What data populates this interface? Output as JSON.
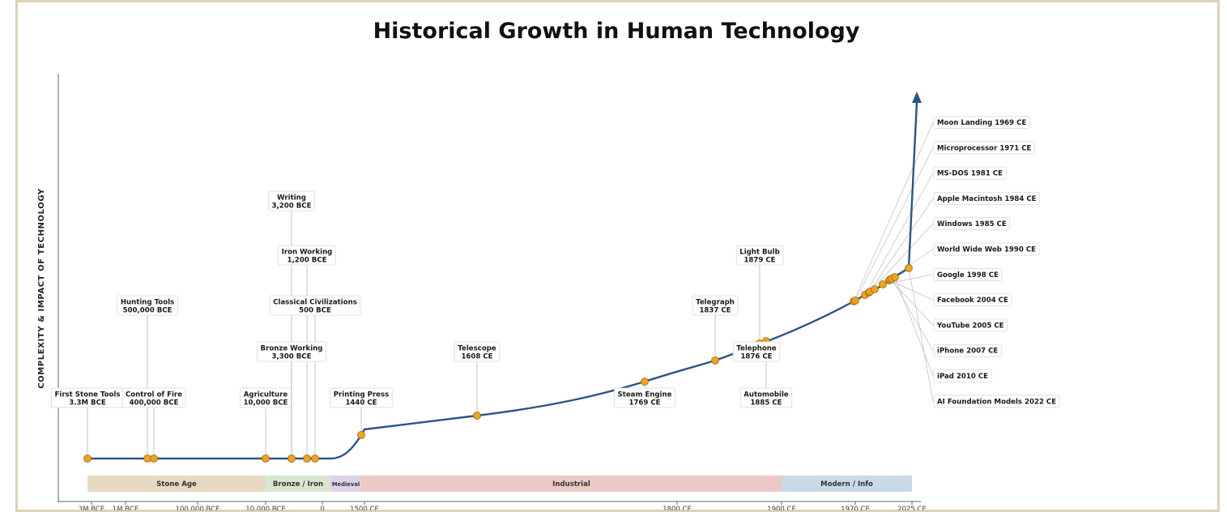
{
  "chart_data": {
    "type": "line",
    "title": "Historical Growth in Human Technology",
    "ylabel": "COMPLEXITY  &  IMPACT  OF  TECHNOLOGY",
    "xlabel": "",
    "x_ticks": [
      "3M BCE",
      "1M BCE",
      "100,000 BCE",
      "10,000 BCE",
      "0",
      "1500 CE",
      "1800 CE",
      "1900 CE",
      "1970 CE",
      "2025 CE"
    ],
    "eras": [
      {
        "label": "Stone Age",
        "color": "#e8d9c2"
      },
      {
        "label": "Bronze / Iron",
        "color": "#d9e6cf"
      },
      {
        "label": "Medieval",
        "color": "#ddd2e6"
      },
      {
        "label": "Industrial",
        "color": "#ecc9c6"
      },
      {
        "label": "Modern / Info",
        "color": "#c9d9e8"
      }
    ],
    "line_color": "#2a5588",
    "marker_color": "#f0a21d",
    "milestones": [
      {
        "name": "First Stone Tools",
        "date": "3.3M BCE"
      },
      {
        "name": "Hunting Tools",
        "date": "500,000 BCE"
      },
      {
        "name": "Control of Fire",
        "date": "400,000 BCE"
      },
      {
        "name": "Agriculture",
        "date": "10,000 BCE"
      },
      {
        "name": "Bronze Working",
        "date": "3,300 BCE"
      },
      {
        "name": "Writing",
        "date": "3,200 BCE"
      },
      {
        "name": "Iron Working",
        "date": "1,200 BCE"
      },
      {
        "name": "Classical Civilizations",
        "date": "500 BCE"
      },
      {
        "name": "Printing Press",
        "date": "1440 CE"
      },
      {
        "name": "Telescope",
        "date": "1608 CE"
      },
      {
        "name": "Steam Engine",
        "date": "1769 CE"
      },
      {
        "name": "Telegraph",
        "date": "1837 CE"
      },
      {
        "name": "Telephone",
        "date": "1876 CE"
      },
      {
        "name": "Light Bulb",
        "date": "1879 CE"
      },
      {
        "name": "Automobile",
        "date": "1885 CE"
      }
    ],
    "modern_milestones": [
      {
        "name": "Moon Landing",
        "date": "1969 CE"
      },
      {
        "name": "Microprocessor",
        "date": "1971 CE"
      },
      {
        "name": "MS-DOS",
        "date": "1981 CE"
      },
      {
        "name": "Apple Macintosh",
        "date": "1984 CE"
      },
      {
        "name": "Windows",
        "date": "1985 CE"
      },
      {
        "name": "World Wide Web",
        "date": "1990 CE"
      },
      {
        "name": "Google",
        "date": "1998 CE"
      },
      {
        "name": "Facebook",
        "date": "2004 CE"
      },
      {
        "name": "YouTube",
        "date": "2005 CE"
      },
      {
        "name": "iPhone",
        "date": "2007 CE"
      },
      {
        "name": "iPad",
        "date": "2010 CE"
      },
      {
        "name": "AI Foundation Models",
        "date": "2022 CE"
      }
    ]
  }
}
